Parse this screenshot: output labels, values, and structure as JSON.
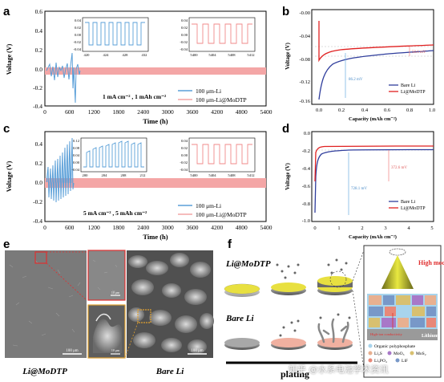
{
  "panels": {
    "a": {
      "label": "a",
      "ylabel": "Voltage (V)",
      "xlabel": "Time (h)",
      "yticks": [
        "0.6",
        "0.4",
        "0.2",
        "0.0",
        "-0.2",
        "-0.4"
      ],
      "xticks": [
        "0",
        "600",
        "1200",
        "1800",
        "2400",
        "3000",
        "3600",
        "4200",
        "4800",
        "5400"
      ],
      "condition": "1 mA cm⁻² , 1 mAh cm⁻²",
      "legend": [
        "100 μm-Li",
        "100 μm-Li@MoDTP"
      ],
      "inset1": {
        "xticks": [
          "420",
          "424",
          "428",
          "432"
        ],
        "yticks": [
          "0.04",
          "0.02",
          "0.00",
          "-0.02",
          "-0.04"
        ]
      },
      "inset2": {
        "xticks": [
          "5400",
          "5404",
          "5408",
          "5412"
        ],
        "yticks": [
          "0.04",
          "0.02",
          "0.00",
          "-0.02",
          "-0.04"
        ]
      }
    },
    "b": {
      "label": "b",
      "ylabel": "Voltage (V)",
      "xlabel": "Capacity (mAh cm⁻²)",
      "yticks": [
        "-0.00",
        "-0.04",
        "-0.08",
        "-0.12",
        "-0.16"
      ],
      "xticks": [
        "0.0",
        "0.2",
        "0.4",
        "0.6",
        "0.8",
        "1.0"
      ],
      "ann_red": "50.6 mV",
      "ann_blue": "86.2 mV",
      "legend": [
        "Bare Li",
        "Li@MoDTP"
      ]
    },
    "c": {
      "label": "c",
      "ylabel": "Voltage (V)",
      "xlabel": "Time (h)",
      "yticks": [
        "0.4",
        "0.2",
        "0.0",
        "-0.2",
        "-0.4"
      ],
      "xticks": [
        "0",
        "600",
        "1200",
        "1800",
        "2400",
        "3000",
        "3600",
        "4200",
        "4800",
        "5400"
      ],
      "condition": "5 mA cm⁻² , 5 mAh cm⁻²",
      "legend": [
        "100 μm-Li",
        "100 μm-Li@MoDTP"
      ],
      "inset1": {
        "xticks": [
          "200",
          "204",
          "208",
          "212"
        ],
        "yticks": [
          "0.12",
          "0.08",
          "0.04",
          "0.00",
          "-0.04"
        ]
      },
      "inset2": {
        "xticks": [
          "5400",
          "5404",
          "5408",
          "5412"
        ],
        "yticks": [
          "0.04",
          "0.02",
          "0.00",
          "-0.02",
          "-0.04"
        ]
      }
    },
    "d": {
      "label": "d",
      "ylabel": "Voltage (V)",
      "xlabel": "Capacity (mAh cm⁻²)",
      "yticks": [
        "0.0",
        "-0.2",
        "-0.4",
        "-0.6",
        "-0.8",
        "-1.0"
      ],
      "xticks": [
        "0",
        "1",
        "2",
        "3",
        "4",
        "5"
      ],
      "ann_red": "372.6 mV",
      "ann_blue": "728.1 mV",
      "legend": [
        "Bare Li",
        "Li@MoDTP"
      ]
    },
    "e": {
      "label": "e",
      "scale_left": "100 μm",
      "scale_right": "100 μm",
      "scale_inset_top": "10 μm",
      "scale_inset_bottom": "10 μm",
      "caption_left": "Li@MoDTP",
      "caption_right": "Bare Li"
    },
    "f": {
      "label": "f",
      "row1": "Li@MoDTP",
      "row2": "Bare Li",
      "high_modulus": "High modulus",
      "high_ion": "High-ion conductivity",
      "lithium": "Lithium",
      "legend": [
        "Organic polyphosphate",
        "Li₂S",
        "MoO₃",
        "MoS₂",
        "Li₃PO₄",
        "LiF"
      ],
      "plating": "plating"
    }
  },
  "watermark": "知乎 @水系电池学术资讯",
  "chart_data": [
    {
      "type": "line",
      "title": "",
      "xlabel": "Time (h)",
      "ylabel": "Voltage (V)",
      "xlim": [
        0,
        5400
      ],
      "ylim": [
        -0.4,
        0.6
      ],
      "series": [
        {
          "name": "100 μm-Li",
          "note_values": "spikes to ~0.18 V before ~600 h"
        },
        {
          "name": "100 μm-Li@MoDTP",
          "values_approx": "±0.02 V over 0–5400 h"
        }
      ]
    },
    {
      "type": "line",
      "title": "",
      "xlabel": "Capacity (mAh cm⁻²)",
      "ylabel": "Voltage (V)",
      "xlim": [
        0,
        1.0
      ],
      "ylim": [
        -0.16,
        0.0
      ],
      "series": [
        {
          "name": "Bare Li",
          "x": [
            0,
            0.02,
            0.05,
            0.1,
            0.2,
            0.4,
            0.6,
            0.8,
            1.0
          ],
          "y": [
            -0.155,
            -0.14,
            -0.115,
            -0.095,
            -0.082,
            -0.076,
            -0.073,
            -0.071,
            -0.069
          ]
        },
        {
          "name": "Li@MoDTP",
          "x": [
            0,
            0.02,
            0.05,
            0.1,
            0.2,
            0.4,
            0.6,
            0.8,
            1.0
          ],
          "y": [
            -0.09,
            -0.08,
            -0.071,
            -0.067,
            -0.064,
            -0.061,
            -0.06,
            -0.058,
            -0.057
          ]
        }
      ]
    },
    {
      "type": "line",
      "title": "",
      "xlabel": "Time (h)",
      "ylabel": "Voltage (V)",
      "xlim": [
        0,
        5400
      ],
      "ylim": [
        -0.4,
        0.4
      ],
      "series": [
        {
          "name": "100 μm-Li",
          "note_values": "spikes to ~0.38 V before ~500 h"
        },
        {
          "name": "100 μm-Li@MoDTP",
          "values_approx": "±0.02 V over 0–5400 h"
        }
      ]
    },
    {
      "type": "line",
      "title": "",
      "xlabel": "Capacity (mAh cm⁻²)",
      "ylabel": "Voltage (V)",
      "xlim": [
        0,
        5
      ],
      "ylim": [
        -1.0,
        0.0
      ],
      "series": [
        {
          "name": "Bare Li",
          "x": [
            0,
            0.05,
            0.1,
            0.2,
            0.3,
            0.5,
            1,
            2,
            3,
            4,
            5
          ],
          "y": [
            -0.92,
            -0.55,
            -0.35,
            -0.28,
            -0.25,
            -0.22,
            -0.21,
            -0.2,
            -0.2,
            -0.2,
            -0.2
          ]
        },
        {
          "name": "Li@MoDTP",
          "x": [
            0,
            0.05,
            0.1,
            0.2,
            0.5,
            1,
            2,
            3,
            4,
            5
          ],
          "y": [
            -0.55,
            -0.3,
            -0.2,
            -0.18,
            -0.17,
            -0.16,
            -0.16,
            -0.16,
            -0.16,
            -0.16
          ]
        }
      ]
    }
  ]
}
